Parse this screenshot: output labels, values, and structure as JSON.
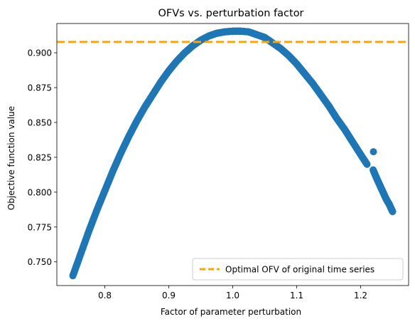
{
  "chart_data": {
    "type": "scatter",
    "title": "OFVs vs. perturbation factor",
    "xlabel": "Factor of parameter perturbation",
    "ylabel": "Objective function value",
    "xlim": [
      0.725,
      1.275
    ],
    "ylim": [
      0.733,
      0.921
    ],
    "xticks": [
      0.8,
      0.9,
      1.0,
      1.1,
      1.2
    ],
    "xtick_labels": [
      "0.8",
      "0.9",
      "1.0",
      "1.1",
      "1.2"
    ],
    "yticks": [
      0.75,
      0.775,
      0.8,
      0.825,
      0.85,
      0.875,
      0.9
    ],
    "ytick_labels": [
      "0.750",
      "0.775",
      "0.800",
      "0.825",
      "0.850",
      "0.875",
      "0.900"
    ],
    "grid": false,
    "legend_position": "lower-right",
    "series": [
      {
        "kind": "scatter",
        "color": "#1f77b4",
        "x": [
          0.75,
          0.7625,
          0.775,
          0.7875,
          0.8,
          0.8125,
          0.825,
          0.8375,
          0.85,
          0.8625,
          0.875,
          0.8875,
          0.9,
          0.9125,
          0.925,
          0.9375,
          0.95,
          0.9625,
          0.975,
          0.9875,
          1.0,
          1.0125,
          1.025,
          1.0375,
          1.05,
          1.0625,
          1.075,
          1.0875,
          1.1,
          1.1125,
          1.125,
          1.1375,
          1.15,
          1.1625,
          1.175,
          1.1875,
          1.2,
          1.21,
          1.22
        ],
        "y": [
          0.74,
          0.756,
          0.772,
          0.787,
          0.801,
          0.815,
          0.828,
          0.84,
          0.851,
          0.861,
          0.87,
          0.879,
          0.887,
          0.894,
          0.9,
          0.905,
          0.909,
          0.912,
          0.914,
          0.915,
          0.9155,
          0.9155,
          0.915,
          0.913,
          0.911,
          0.907,
          0.903,
          0.898,
          0.892,
          0.885,
          0.878,
          0.87,
          0.862,
          0.853,
          0.845,
          0.836,
          0.827,
          0.82,
          0.829
        ]
      },
      {
        "kind": "scatter",
        "color": "#1f77b4",
        "x": [
          1.2195,
          1.225,
          1.23,
          1.235,
          1.24,
          1.245,
          1.25
        ],
        "y": [
          0.816,
          0.81,
          0.805,
          0.8,
          0.795,
          0.791,
          0.786
        ]
      }
    ],
    "reference_line": {
      "kind": "hline",
      "y": 0.9078,
      "color": "#ffa500",
      "style": "dashed",
      "label": "Optimal OFV of original time series"
    }
  }
}
